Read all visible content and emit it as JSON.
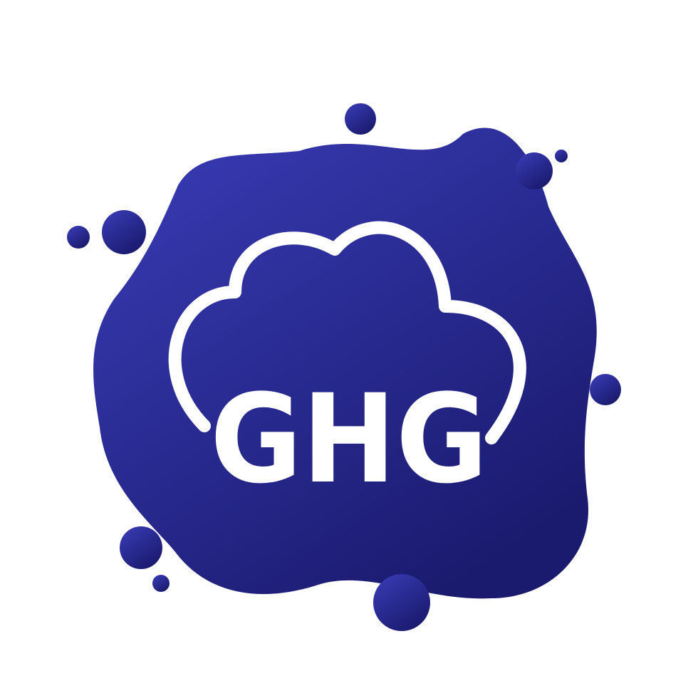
{
  "icon": {
    "label": "GHG",
    "colors": {
      "background": "#ffffff",
      "gradient_start": "#3a3db8",
      "gradient_end": "#1a1a6e",
      "foreground": "#ffffff"
    }
  }
}
